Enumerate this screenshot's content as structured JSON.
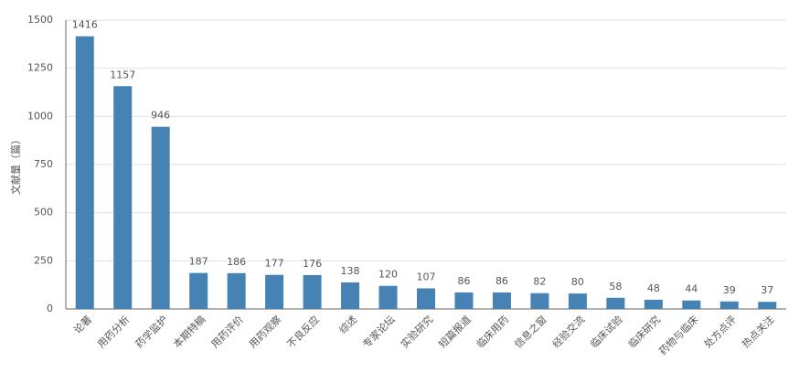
{
  "chart_data": {
    "type": "bar",
    "y_label": "文献量（篇）",
    "categories": [
      "论著",
      "用药分析",
      "药学监护",
      "本期特稿",
      "用药评价",
      "用药观察",
      "不良反应",
      "综述",
      "专家论坛",
      "实验研究",
      "短篇报道",
      "临床用药",
      "信息之窗",
      "经验交流",
      "临床试验",
      "临床研究",
      "药物与临床",
      "处方点评",
      "热点关注"
    ],
    "values": [
      1416,
      1157,
      946,
      187,
      186,
      177,
      176,
      138,
      120,
      107,
      86,
      86,
      82,
      80,
      58,
      48,
      44,
      39,
      37
    ],
    "color": "#4682b4",
    "ylim": [
      0,
      1500
    ],
    "yticks": [
      0,
      250,
      500,
      750,
      1000,
      1250,
      1500
    ],
    "grid": true
  }
}
